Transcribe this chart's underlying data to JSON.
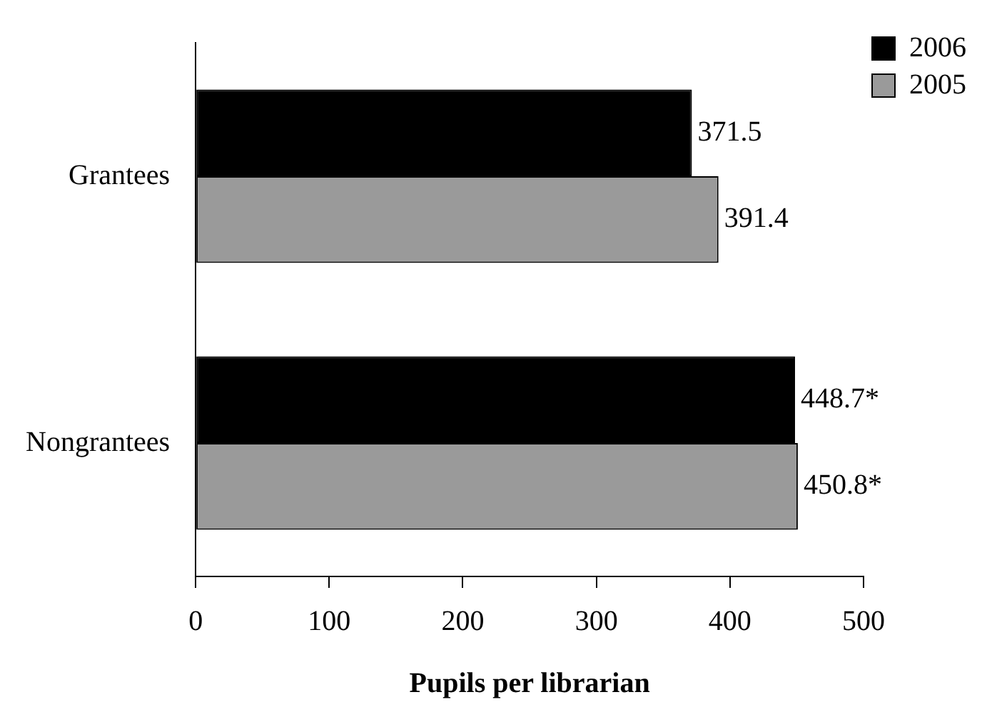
{
  "chart_data": {
    "type": "bar",
    "orientation": "horizontal",
    "xlabel": "Pupils per librarian",
    "categories": [
      "Grantees",
      "Nongrantees"
    ],
    "series": [
      {
        "name": "2006",
        "color": "#000000",
        "values": [
          371.5,
          448.7
        ],
        "value_labels": [
          "371.5",
          "448.7*"
        ]
      },
      {
        "name": "2005",
        "color": "#9a9a9a",
        "values": [
          391.4,
          450.8
        ],
        "value_labels": [
          "391.4",
          "450.8*"
        ]
      }
    ],
    "xlim": [
      0,
      500
    ],
    "xticks": [
      0,
      100,
      200,
      300,
      400,
      500
    ],
    "grid": false,
    "legend": "top right"
  }
}
